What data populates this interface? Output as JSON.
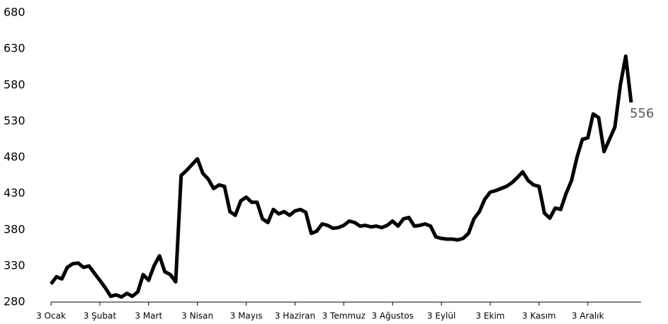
{
  "chart_data": {
    "type": "line",
    "categories": [
      "3 Ocak",
      null,
      null,
      null,
      null,
      null,
      null,
      null,
      null,
      "3 Şubat",
      null,
      null,
      null,
      null,
      null,
      null,
      null,
      null,
      "3 Mart",
      null,
      null,
      null,
      null,
      null,
      null,
      null,
      null,
      "3 Nisan",
      null,
      null,
      null,
      null,
      null,
      null,
      null,
      null,
      "3 Mayıs",
      null,
      null,
      null,
      null,
      null,
      null,
      null,
      null,
      "3 Haziran",
      null,
      null,
      null,
      null,
      null,
      null,
      null,
      null,
      "3 Temmuz",
      null,
      null,
      null,
      null,
      null,
      null,
      null,
      null,
      "3 Ağustos",
      null,
      null,
      null,
      null,
      null,
      null,
      null,
      null,
      "3 Eylül",
      null,
      null,
      null,
      null,
      null,
      null,
      null,
      null,
      "3 Ekim",
      null,
      null,
      null,
      null,
      null,
      null,
      null,
      null,
      "3 Kasım",
      null,
      null,
      null,
      null,
      null,
      null,
      null,
      null,
      "3 Aralık",
      null,
      null,
      null,
      null,
      null,
      null,
      null,
      null
    ],
    "series": [
      {
        "color": "#000000",
        "values": [
          305,
          315,
          312,
          328,
          333,
          334,
          328,
          330,
          320,
          310,
          300,
          288,
          290,
          287,
          292,
          288,
          294,
          318,
          310,
          330,
          344,
          322,
          318,
          308,
          455,
          462,
          470,
          478,
          458,
          450,
          437,
          442,
          440,
          405,
          400,
          420,
          425,
          418,
          418,
          395,
          390,
          408,
          402,
          405,
          400,
          406,
          408,
          404,
          375,
          378,
          388,
          386,
          382,
          383,
          386,
          392,
          390,
          385,
          386,
          384,
          385,
          383,
          386,
          392,
          385,
          395,
          397,
          385,
          386,
          388,
          385,
          370,
          368,
          367,
          367,
          366,
          368,
          375,
          395,
          405,
          422,
          432,
          434,
          437,
          440,
          445,
          452,
          460,
          448,
          442,
          440,
          403,
          396,
          410,
          408,
          430,
          448,
          480,
          505,
          507,
          540,
          535,
          488,
          505,
          522,
          580,
          620,
          556
        ]
      }
    ],
    "ylim": [
      280,
      680
    ],
    "yticks": [
      280,
      330,
      380,
      430,
      480,
      530,
      580,
      630,
      680
    ],
    "grid": false
  }
}
